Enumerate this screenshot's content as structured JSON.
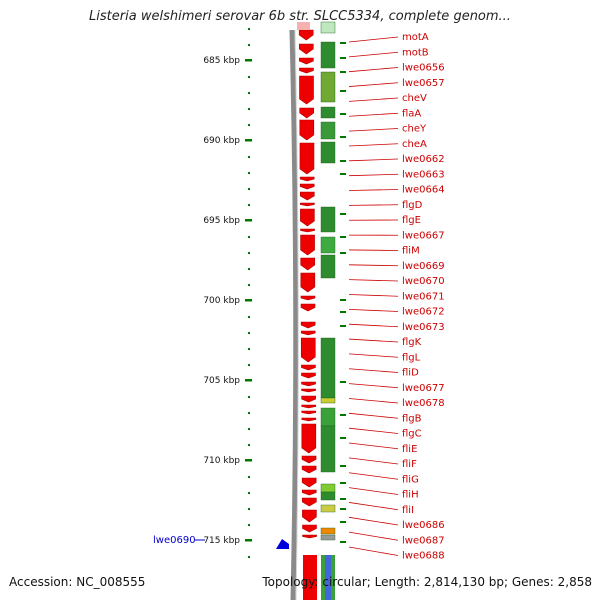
{
  "title": "Listeria welshimeri serovar 6b str. SLCC5334, complete genom...",
  "footer": {
    "accession": "Accession: NC_008555",
    "summary": "Topology: circular; Length: 2,814,130 bp; Genes: 2,858"
  },
  "colors": {
    "gene_red": "#ee0000",
    "label_red": "#cc0000",
    "tick_green": "#007700",
    "backbone_gray": "#8a8a8a",
    "blue_marker": "#0000cc"
  },
  "ruler": [
    {
      "label": "685 kbp"
    },
    {
      "label": "690 kbp"
    },
    {
      "label": "695 kbp"
    },
    {
      "label": "700 kbp"
    },
    {
      "label": "705 kbp"
    },
    {
      "label": "710 kbp"
    },
    {
      "label": "715 kbp"
    }
  ],
  "outside_label": "lwe0690",
  "gene_labels": [
    "motA",
    "motB",
    "lwe0656",
    "lwe0657",
    "cheV",
    "flaA",
    "cheY",
    "cheA",
    "lwe0662",
    "lwe0663",
    "lwe0664",
    "flgD",
    "flgE",
    "lwe0667",
    "fliM",
    "lwe0669",
    "lwe0670",
    "lwe0671",
    "lwe0672",
    "lwe0673",
    "flgK",
    "flgL",
    "fliD",
    "lwe0677",
    "lwe0678",
    "flgB",
    "flgC",
    "fliE",
    "fliF",
    "fliG",
    "fliH",
    "fliI",
    "lwe0686",
    "lwe0687",
    "lwe0688"
  ]
}
